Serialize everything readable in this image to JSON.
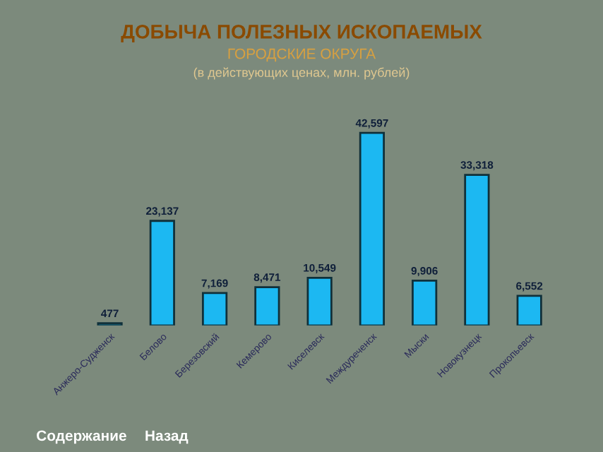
{
  "chart_data": {
    "type": "bar",
    "title": "ДОБЫЧА ПОЛЕЗНЫХ ИСКОПАЕМЫХ",
    "subtitle": "ГОРОДСКИЕ ОКРУГА",
    "annotations": [
      "(в действующих ценах, млн. рублей)",
      "Содержание",
      "Назад"
    ],
    "categories": [
      "Анжеро-Судженск",
      "Белово",
      "Березовский",
      "Кемерово",
      "Киселевск",
      "Междуреченск",
      "Мыски",
      "Новокузнецк",
      "Прокопьевск"
    ],
    "values": [
      477,
      23137,
      7169,
      8471,
      10549,
      42597,
      9906,
      33318,
      6552
    ],
    "value_labels": [
      "477",
      "23,137",
      "7,169",
      "8,471",
      "10,549",
      "42,597",
      "9,906",
      "33,318",
      "6,552"
    ],
    "color": "#1cb8f2",
    "grid": false,
    "legend": false
  }
}
